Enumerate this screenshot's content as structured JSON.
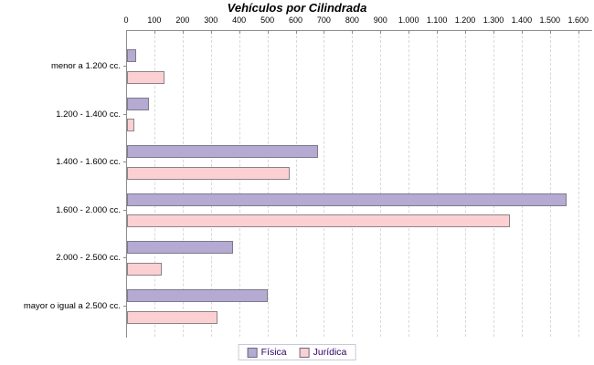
{
  "chart_data": {
    "type": "bar",
    "orientation": "horizontal",
    "title": "Vehículos por Cilindrada",
    "xlabel": "",
    "ylabel": "",
    "xlim": [
      0,
      1600
    ],
    "x_tick_interval": 100,
    "x_tick_labels": [
      "0",
      "100",
      "200",
      "300",
      "400",
      "500",
      "600",
      "700",
      "800",
      "900",
      "1.000",
      "1.100",
      "1.200",
      "1.300",
      "1.400",
      "1.500",
      "1.600"
    ],
    "grid": "vertical-dashed",
    "legend_position": "bottom-center",
    "categories": [
      "menor a 1.200 cc.",
      "1.200 - 1.400 cc.",
      "1.400 - 1.600 cc.",
      "1.600 - 2.000 cc.",
      "2.000 - 2.500 cc.",
      "mayor o igual a 2.500 cc."
    ],
    "series": [
      {
        "name": "Física",
        "fill": "#b4aad2",
        "border": "#7e7a8a",
        "values": [
          25,
          70,
          670,
          1550,
          370,
          490
        ]
      },
      {
        "name": "Jurídica",
        "fill": "#fcd0d2",
        "border": "#8a8488",
        "values": [
          125,
          20,
          570,
          1350,
          115,
          315
        ]
      }
    ],
    "colors": {
      "background": "#ffffff",
      "axis": "#8c8c8c",
      "grid": "#d9d9d9",
      "title_text": "#000000",
      "tick_text": "#000000",
      "legend_text": "#330066",
      "legend_border": "#c9c9d9"
    }
  }
}
